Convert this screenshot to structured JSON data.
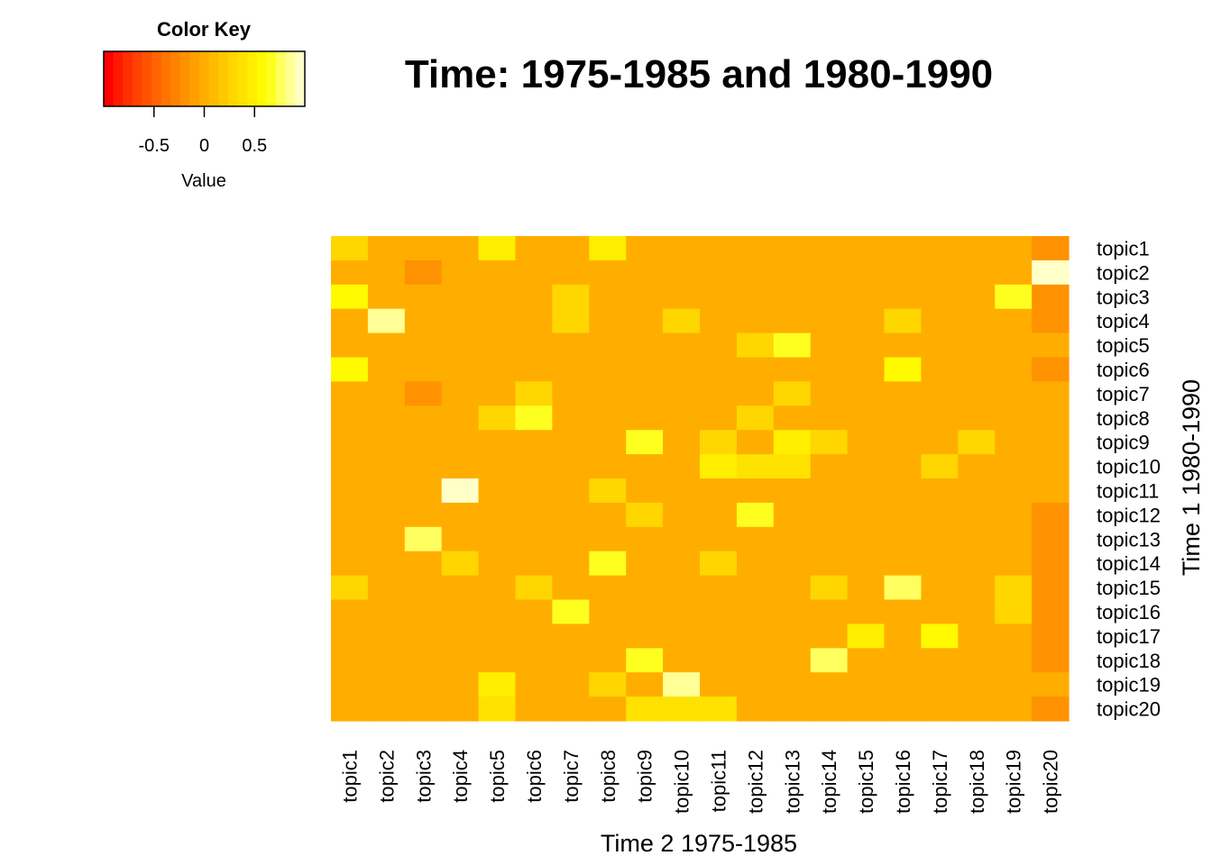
{
  "chart_data": {
    "type": "heatmap",
    "title": "Time: 1975-1985 and 1980-1990",
    "xlabel": "Time 2 1975-1985",
    "ylabel": "Time 1 1980-1990",
    "x_categories": [
      "topic1",
      "topic2",
      "topic3",
      "topic4",
      "topic5",
      "topic6",
      "topic7",
      "topic8",
      "topic9",
      "topic10",
      "topic11",
      "topic12",
      "topic13",
      "topic14",
      "topic15",
      "topic16",
      "topic17",
      "topic18",
      "topic19",
      "topic20"
    ],
    "y_categories": [
      "topic1",
      "topic2",
      "topic3",
      "topic4",
      "topic5",
      "topic6",
      "topic7",
      "topic8",
      "topic9",
      "topic10",
      "topic11",
      "topic12",
      "topic13",
      "topic14",
      "topic15",
      "topic16",
      "topic17",
      "topic18",
      "topic19",
      "topic20"
    ],
    "values": [
      [
        0.3,
        0,
        0,
        0,
        0.5,
        0,
        0,
        0.5,
        0,
        0,
        0,
        0,
        0,
        0,
        0,
        0,
        0,
        0,
        0,
        -0.2
      ],
      [
        0,
        0,
        -0.2,
        0,
        0,
        0,
        0,
        0,
        0,
        0,
        0,
        0,
        0,
        0,
        0,
        0,
        0,
        0,
        0,
        0.95
      ],
      [
        0.55,
        0,
        0,
        0,
        0,
        0,
        0.3,
        0,
        0,
        0,
        0,
        0,
        0,
        0,
        0,
        0,
        0,
        0,
        0.65,
        -0.2
      ],
      [
        0,
        0.85,
        0,
        0,
        0,
        0,
        0.3,
        0,
        0,
        0.3,
        0,
        0,
        0,
        0,
        0,
        0.3,
        0,
        0,
        0,
        -0.2
      ],
      [
        0,
        0,
        0,
        0,
        0,
        0,
        0,
        0,
        0,
        0,
        0,
        0.3,
        0.65,
        0,
        0,
        0,
        0,
        0,
        0,
        0
      ],
      [
        0.55,
        0,
        0,
        0,
        0,
        0,
        0,
        0,
        0,
        0,
        0,
        0,
        0,
        0,
        0,
        0.55,
        0,
        0,
        0,
        -0.2
      ],
      [
        0,
        0,
        -0.2,
        0,
        0,
        0.3,
        0,
        0,
        0,
        0,
        0,
        0,
        0.3,
        0,
        0,
        0,
        0,
        0,
        0,
        0
      ],
      [
        0,
        0,
        0,
        0,
        0.3,
        0.65,
        0,
        0,
        0,
        0,
        0,
        0.3,
        0,
        0,
        0,
        0,
        0,
        0,
        0,
        0
      ],
      [
        0,
        0,
        0,
        0,
        0,
        0,
        0,
        0,
        0.65,
        0,
        0.3,
        0,
        0.5,
        0.3,
        0,
        0,
        0,
        0.3,
        0,
        0
      ],
      [
        0,
        0,
        0,
        0,
        0,
        0,
        0,
        0,
        0,
        0,
        0.5,
        0.35,
        0.35,
        0,
        0,
        0,
        0.3,
        0,
        0,
        0
      ],
      [
        0,
        0,
        0,
        0.95,
        0,
        0,
        0,
        0.3,
        0,
        0,
        0,
        0,
        0,
        0,
        0,
        0,
        0,
        0,
        0,
        0
      ],
      [
        0,
        0,
        0,
        0,
        0,
        0,
        0,
        0,
        0.3,
        0,
        0,
        0.65,
        0,
        0,
        0,
        0,
        0,
        0,
        0,
        -0.2
      ],
      [
        0,
        0,
        0.75,
        0,
        0,
        0,
        0,
        0,
        0,
        0,
        0,
        0,
        0,
        0,
        0,
        0,
        0,
        0,
        0,
        -0.2
      ],
      [
        0,
        0,
        0,
        0.3,
        0,
        0,
        0,
        0.65,
        0,
        0,
        0.3,
        0,
        0,
        0,
        0,
        0,
        0,
        0,
        0,
        -0.2
      ],
      [
        0.3,
        0,
        0,
        0,
        0,
        0.3,
        0,
        0,
        0,
        0,
        0,
        0,
        0,
        0.3,
        0,
        0.75,
        0,
        0,
        0.3,
        -0.2
      ],
      [
        0,
        0,
        0,
        0,
        0,
        0,
        0.65,
        0,
        0,
        0,
        0,
        0,
        0,
        0,
        0,
        0,
        0,
        0,
        0.3,
        -0.2
      ],
      [
        0,
        0,
        0,
        0,
        0,
        0,
        0,
        0,
        0,
        0,
        0,
        0,
        0,
        0,
        0.45,
        0,
        0.6,
        0,
        0,
        -0.2
      ],
      [
        0,
        0,
        0,
        0,
        0,
        0,
        0,
        0,
        0.65,
        0,
        0,
        0,
        0,
        0.75,
        0,
        0,
        0,
        0,
        0,
        -0.2
      ],
      [
        0,
        0,
        0,
        0,
        0.5,
        0,
        0,
        0.3,
        0,
        0.85,
        0,
        0,
        0,
        0,
        0,
        0,
        0,
        0,
        0,
        0
      ],
      [
        0,
        0,
        0,
        0,
        0.35,
        0,
        0,
        0,
        0.35,
        0.35,
        0.35,
        0,
        0,
        0,
        0,
        0,
        0,
        0,
        0,
        -0.2
      ]
    ],
    "color_key": {
      "title": "Color Key",
      "xlabel": "Value",
      "range": [
        -1,
        1
      ],
      "ticks": [
        -0.5,
        0,
        0.5
      ],
      "tick_labels": [
        "-0.5",
        "0",
        "0.5"
      ],
      "colors": [
        "#FF0000",
        "#FF1A00",
        "#FF2F00",
        "#FF4200",
        "#FF5300",
        "#FF6400",
        "#FF7400",
        "#FF8300",
        "#FF9200",
        "#FFA000",
        "#FFAE00",
        "#FFBB00",
        "#FFC900",
        "#FFD600",
        "#FFE200",
        "#FFEE00",
        "#FFFA00",
        "#FFFF1F",
        "#FFFF60",
        "#FFFF95",
        "#FFFFC8"
      ]
    }
  }
}
